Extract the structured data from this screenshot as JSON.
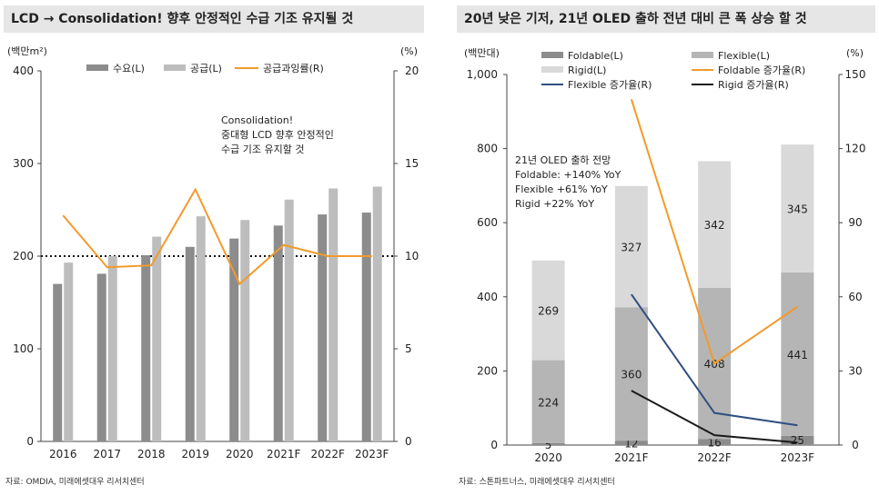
{
  "charts": [
    {
      "title": "LCD → Consolidation! 향후 안정적인 수급 기조 유지될 것",
      "source": "자료: OMDIA, 미래에셋대우 리서치센터",
      "left_unit": "(백만m²)",
      "right_unit": "(%)",
      "annotation": [
        "Consolidation!",
        "중대형 LCD 향후 안정적인",
        "수급 기조 유지할 것"
      ],
      "left_ticks": [
        "400",
        "300",
        "200",
        "100",
        "0"
      ],
      "right_ticks": [
        "20",
        "15",
        "10",
        "5",
        "0"
      ],
      "legend": [
        "수요(L)",
        "공급(L)",
        "공급과잉률(R)"
      ],
      "colors": {
        "demand": "#8c8c8c",
        "supply": "#bdbdbd",
        "oversupply": "#f39a2b"
      }
    },
    {
      "title": "20년 낮은 기저, 21년 OLED 출하 전년 대비 큰 폭 상승 할 것",
      "source": "자료: 스톤파트너스, 미래에셋대우 리서치센터",
      "left_unit": "(백만대)",
      "right_unit": "(%)",
      "annotation": [
        "21년 OLED 출하 전망",
        "Foldable: +140% YoY",
        "Flexible +61% YoY",
        "Rigid +22% YoY"
      ],
      "left_ticks": [
        "1,000",
        "800",
        "600",
        "400",
        "200",
        "0"
      ],
      "right_ticks": [
        "150",
        "120",
        "90",
        "60",
        "30",
        "0"
      ],
      "legend": [
        "Foldable(L)",
        "Flexible(L)",
        "Rigid(L)",
        "Foldable 증가율(R)",
        "Flexible 증가율(R)",
        "Rigid 증가율(R)"
      ],
      "colors": {
        "foldable": "#8c8c8c",
        "flexible": "#b5b5b5",
        "rigid": "#d9d9d9",
        "foldable_growth": "#f39a2b",
        "flexible_growth": "#2f4f80",
        "rigid_growth": "#1a1a1a"
      }
    }
  ],
  "chart_data": [
    {
      "type": "bar",
      "title": "LCD → Consolidation! 향후 안정적인 수급 기조 유지될 것",
      "categories": [
        "2016",
        "2017",
        "2018",
        "2019",
        "2020",
        "2021F",
        "2022F",
        "2023F"
      ],
      "series": [
        {
          "name": "수요(L)",
          "axis": "left",
          "values": [
            170,
            181,
            201,
            210,
            219,
            233,
            245,
            247
          ]
        },
        {
          "name": "공급(L)",
          "axis": "left",
          "values": [
            193,
            200,
            221,
            243,
            239,
            261,
            273,
            275
          ]
        },
        {
          "name": "공급과잉률(R)",
          "axis": "right",
          "type": "line",
          "values": [
            12.2,
            9.4,
            9.5,
            13.6,
            8.5,
            10.6,
            10.0,
            10.0
          ]
        }
      ],
      "ylabel_left": "(백만m²)",
      "ylabel_right": "(%)",
      "ylim_left": [
        0,
        400
      ],
      "ylim_right": [
        0,
        20
      ],
      "reference_line": {
        "axis": "right",
        "value": 10,
        "style": "dotted"
      },
      "legend_position": "top"
    },
    {
      "type": "bar",
      "stacked": true,
      "title": "20년 낮은 기저, 21년 OLED 출하 전년 대비 큰 폭 상승 할 것",
      "categories": [
        "2020",
        "2021F",
        "2022F",
        "2023F"
      ],
      "series": [
        {
          "name": "Foldable(L)",
          "axis": "left",
          "values": [
            5,
            12,
            16,
            25
          ]
        },
        {
          "name": "Flexible(L)",
          "axis": "left",
          "values": [
            224,
            360,
            408,
            441
          ]
        },
        {
          "name": "Rigid(L)",
          "axis": "left",
          "values": [
            269,
            327,
            342,
            345
          ]
        },
        {
          "name": "Foldable 증가율(R)",
          "axis": "right",
          "type": "line",
          "values": [
            null,
            140,
            33,
            56
          ]
        },
        {
          "name": "Flexible 증가율(R)",
          "axis": "right",
          "type": "line",
          "values": [
            null,
            61,
            13,
            8
          ]
        },
        {
          "name": "Rigid 증가율(R)",
          "axis": "right",
          "type": "line",
          "values": [
            null,
            22,
            4,
            1
          ]
        }
      ],
      "data_labels": {
        "Foldable(L)": [
          "5",
          "12",
          "16",
          "25"
        ],
        "Flexible(L)": [
          "224",
          "360",
          "408",
          "441"
        ],
        "Rigid(L)": [
          "269",
          "327",
          "342",
          "345"
        ]
      },
      "ylabel_left": "(백만대)",
      "ylabel_right": "(%)",
      "ylim_left": [
        0,
        1000
      ],
      "ylim_right": [
        0,
        150
      ],
      "legend_position": "top"
    }
  ]
}
